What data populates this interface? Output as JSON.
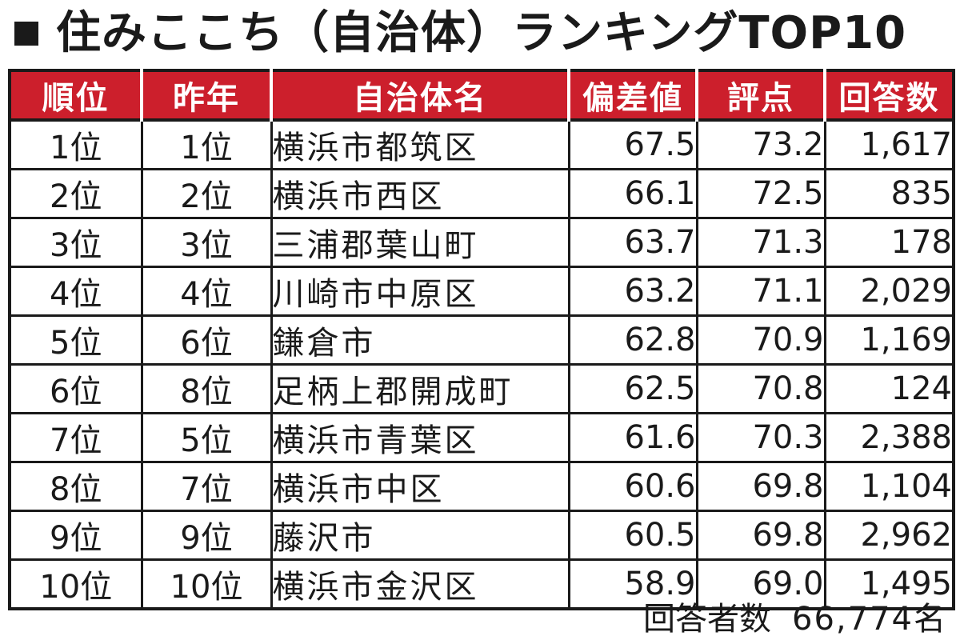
{
  "title": "住みここち（自治体）ランキングTOP10",
  "table": {
    "headers": [
      "順位",
      "昨年",
      "自治体名",
      "偏差値",
      "評点",
      "回答数"
    ],
    "rows": [
      {
        "rank": "1位",
        "prev": "1位",
        "name": "横浜市都筑区",
        "score": "67.5",
        "rating": "73.2",
        "count": "1,617"
      },
      {
        "rank": "2位",
        "prev": "2位",
        "name": "横浜市西区",
        "score": "66.1",
        "rating": "72.5",
        "count": "835"
      },
      {
        "rank": "3位",
        "prev": "3位",
        "name": "三浦郡葉山町",
        "score": "63.7",
        "rating": "71.3",
        "count": "178"
      },
      {
        "rank": "4位",
        "prev": "4位",
        "name": "川崎市中原区",
        "score": "63.2",
        "rating": "71.1",
        "count": "2,029"
      },
      {
        "rank": "5位",
        "prev": "6位",
        "name": "鎌倉市",
        "score": "62.8",
        "rating": "70.9",
        "count": "1,169"
      },
      {
        "rank": "6位",
        "prev": "8位",
        "name": "足柄上郡開成町",
        "score": "62.5",
        "rating": "70.8",
        "count": "124"
      },
      {
        "rank": "7位",
        "prev": "5位",
        "name": "横浜市青葉区",
        "score": "61.6",
        "rating": "70.3",
        "count": "2,388"
      },
      {
        "rank": "8位",
        "prev": "7位",
        "name": "横浜市中区",
        "score": "60.6",
        "rating": "69.8",
        "count": "1,104"
      },
      {
        "rank": "9位",
        "prev": "9位",
        "name": "藤沢市",
        "score": "60.5",
        "rating": "69.8",
        "count": "2,962"
      },
      {
        "rank": "10位",
        "prev": "10位",
        "name": "横浜市金沢区",
        "score": "58.9",
        "rating": "69.0",
        "count": "1,495"
      }
    ]
  },
  "footer": {
    "label": "回答者数",
    "value": "66,774名"
  },
  "colors": {
    "header_bg": "#cc1f2c",
    "header_text": "#ffffff",
    "border": "#1a1a1a"
  }
}
